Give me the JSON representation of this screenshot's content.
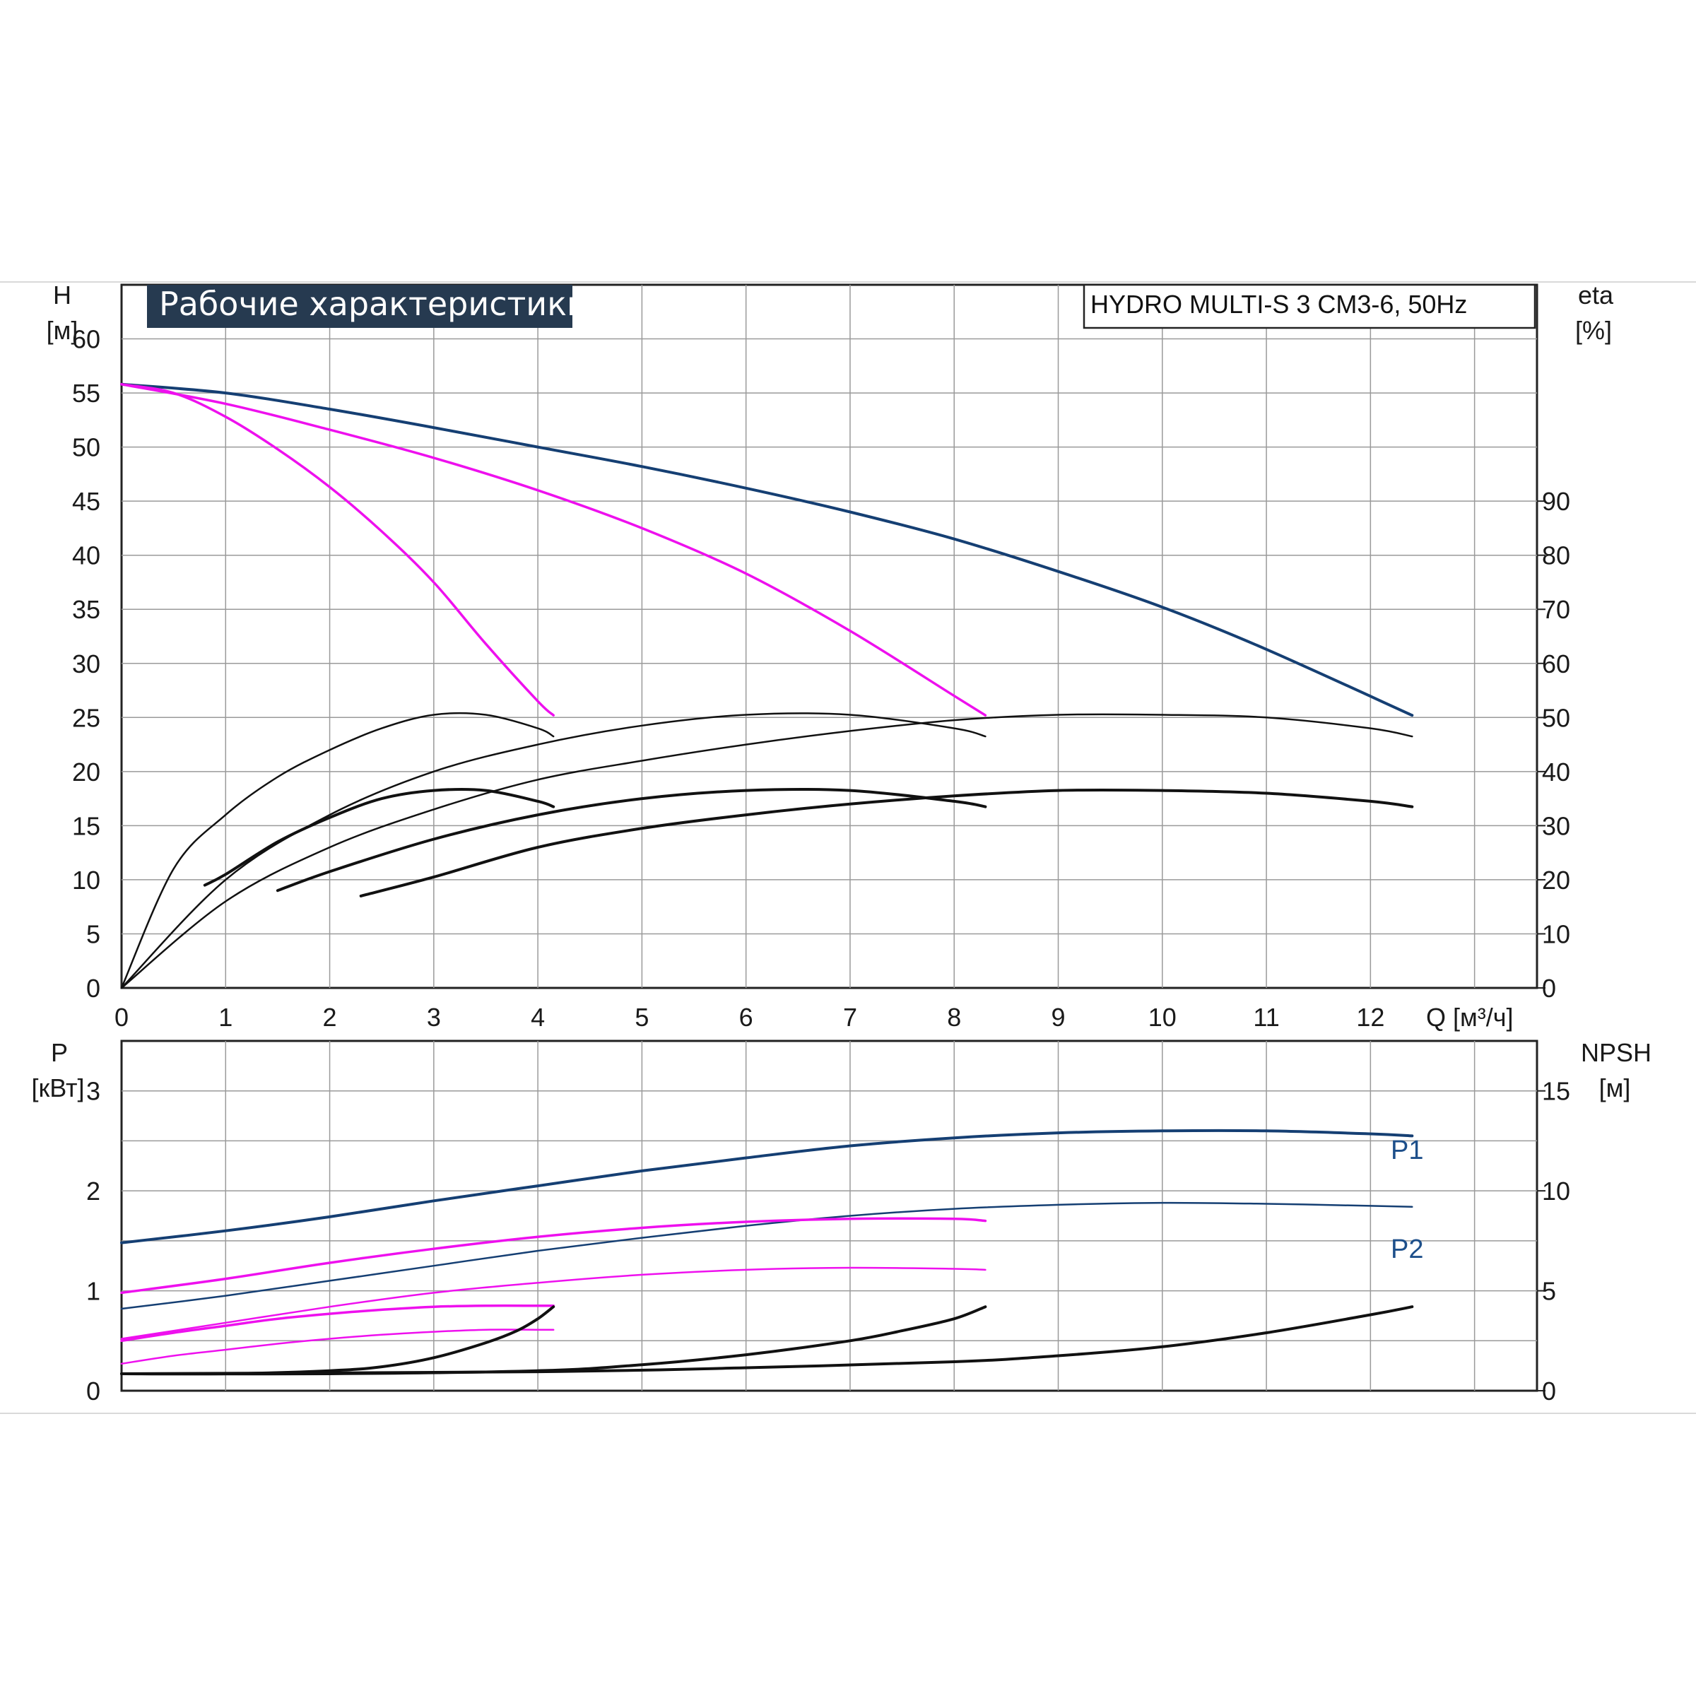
{
  "header": {
    "title": "Рабочие характеристики",
    "model": "HYDRO MULTI-S 3 CM3-6, 50Hz"
  },
  "colors": {
    "blue": "#153f73",
    "magenta": "#ee10ee",
    "black": "#111111",
    "title_bg": "#263a50"
  },
  "chart_data": [
    {
      "type": "line",
      "name": "head-efficiency",
      "xlabel": "Q [м³/ч]",
      "ylabel_left": "H",
      "ylabel_left_unit": "[м]",
      "ylabel_right": "eta",
      "ylabel_right_unit": "[%]",
      "xlim": [
        0,
        13.6
      ],
      "ylim_left": [
        0,
        65
      ],
      "ylim_right": [
        0,
        130
      ],
      "x_ticks": [
        "0",
        "1",
        "2",
        "3",
        "4",
        "5",
        "6",
        "7",
        "8",
        "9",
        "10",
        "11",
        "12"
      ],
      "y_ticks_left": [
        "0",
        "5",
        "10",
        "15",
        "20",
        "25",
        "30",
        "35",
        "40",
        "45",
        "50",
        "55",
        "60"
      ],
      "y_ticks_right": [
        "0",
        "10",
        "20",
        "30",
        "40",
        "50",
        "60",
        "70",
        "80",
        "90"
      ],
      "grid": true,
      "series": [
        {
          "color": "blue",
          "width": 4,
          "axis": "left",
          "x": [
            0,
            1,
            2,
            3,
            4,
            5,
            6,
            7,
            8,
            9,
            10,
            11,
            12.4
          ],
          "y": [
            55.8,
            55,
            53.5,
            51.8,
            50,
            48.2,
            46.2,
            44,
            41.5,
            38.5,
            35.2,
            31.3,
            25.2
          ]
        },
        {
          "color": "magenta",
          "width": 3.5,
          "axis": "left",
          "x": [
            0,
            1,
            2,
            3,
            4,
            5,
            6,
            7,
            8,
            8.3
          ],
          "y": [
            55.8,
            54,
            51.6,
            49,
            46,
            42.5,
            38.3,
            33,
            27,
            25.2
          ]
        },
        {
          "color": "magenta",
          "width": 3.5,
          "axis": "left",
          "x": [
            0,
            0.5,
            1,
            1.5,
            2,
            2.5,
            3,
            3.5,
            4,
            4.15
          ],
          "y": [
            55.8,
            55,
            52.8,
            49.8,
            46.3,
            42.2,
            37.5,
            31.8,
            26.5,
            25.2
          ]
        },
        {
          "color": "black",
          "width": 2.5,
          "axis": "right",
          "x": [
            0,
            0.5,
            1,
            1.5,
            2,
            2.5,
            3,
            3.5,
            4,
            4.15
          ],
          "y": [
            0,
            22,
            32,
            39,
            44,
            48,
            50.5,
            50.5,
            48,
            46.5
          ]
        },
        {
          "color": "black",
          "width": 4,
          "axis": "right",
          "x": [
            0.8,
            1,
            1.5,
            2,
            2.5,
            3,
            3.5,
            4,
            4.15
          ],
          "y": [
            19,
            21,
            27,
            31.5,
            35,
            36.5,
            36.5,
            34.5,
            33.5
          ]
        },
        {
          "color": "black",
          "width": 2.5,
          "axis": "right",
          "x": [
            0,
            1,
            2,
            3,
            4,
            5,
            6,
            7,
            8,
            8.3
          ],
          "y": [
            0,
            20,
            32,
            40,
            45,
            48.5,
            50.5,
            50.5,
            48,
            46.5
          ]
        },
        {
          "color": "black",
          "width": 4,
          "axis": "right",
          "x": [
            1.5,
            2,
            3,
            4,
            5,
            6,
            7,
            8,
            8.3
          ],
          "y": [
            18,
            21.5,
            27.5,
            32,
            35,
            36.5,
            36.5,
            34.5,
            33.5
          ]
        },
        {
          "color": "black",
          "width": 2.5,
          "axis": "right",
          "x": [
            0,
            1,
            2,
            3,
            4,
            5,
            6,
            7,
            8,
            9,
            10,
            11,
            12,
            12.4
          ],
          "y": [
            0,
            16,
            26,
            33,
            38.5,
            42,
            45,
            47.5,
            49.5,
            50.5,
            50.5,
            50,
            48,
            46.5
          ]
        },
        {
          "color": "black",
          "width": 4,
          "axis": "right",
          "x": [
            2.3,
            3,
            4,
            5,
            6,
            7,
            8,
            9,
            10,
            11,
            12,
            12.4
          ],
          "y": [
            17,
            20.5,
            26,
            29.5,
            32,
            34,
            35.5,
            36.5,
            36.5,
            36,
            34.5,
            33.5
          ]
        }
      ]
    },
    {
      "type": "line",
      "name": "power-npsh",
      "ylabel_left": "P",
      "ylabel_left_unit": "[кВт]",
      "ylabel_right": "NPSH",
      "ylabel_right_unit": "[м]",
      "xlim": [
        0,
        13.6
      ],
      "ylim_left": [
        0,
        3.5
      ],
      "ylim_right": [
        0,
        17.5
      ],
      "y_ticks_left": [
        "0",
        "1",
        "2",
        "3"
      ],
      "y_ticks_right": [
        "0",
        "5",
        "10",
        "15"
      ],
      "grid": true,
      "series": [
        {
          "label": "P1",
          "color": "blue",
          "width": 4,
          "axis": "left",
          "x": [
            0,
            1,
            2,
            3,
            4,
            5,
            6,
            7,
            8,
            9,
            10,
            11,
            12,
            12.4
          ],
          "y": [
            1.48,
            1.6,
            1.74,
            1.9,
            2.05,
            2.2,
            2.33,
            2.45,
            2.53,
            2.58,
            2.6,
            2.6,
            2.57,
            2.55
          ]
        },
        {
          "label": "P2",
          "color": "blue",
          "width": 2.5,
          "axis": "left",
          "x": [
            0,
            1,
            2,
            3,
            4,
            5,
            6,
            7,
            8,
            9,
            10,
            11,
            12,
            12.4
          ],
          "y": [
            0.82,
            0.95,
            1.1,
            1.25,
            1.4,
            1.53,
            1.65,
            1.75,
            1.82,
            1.86,
            1.88,
            1.87,
            1.85,
            1.84
          ]
        },
        {
          "color": "magenta",
          "width": 3.5,
          "axis": "left",
          "x": [
            0,
            1,
            2,
            3,
            4,
            5,
            6,
            7,
            8,
            8.3
          ],
          "y": [
            0.98,
            1.12,
            1.28,
            1.42,
            1.54,
            1.63,
            1.69,
            1.72,
            1.72,
            1.7
          ]
        },
        {
          "color": "magenta",
          "width": 2.5,
          "axis": "left",
          "x": [
            0,
            1,
            2,
            3,
            4,
            5,
            6,
            7,
            8,
            8.3
          ],
          "y": [
            0.52,
            0.68,
            0.84,
            0.98,
            1.08,
            1.16,
            1.21,
            1.23,
            1.22,
            1.21
          ]
        },
        {
          "color": "magenta",
          "width": 3.5,
          "axis": "left",
          "x": [
            0,
            0.5,
            1,
            1.5,
            2,
            2.5,
            3,
            3.5,
            4,
            4.15
          ],
          "y": [
            0.5,
            0.58,
            0.65,
            0.72,
            0.77,
            0.81,
            0.84,
            0.85,
            0.85,
            0.85
          ]
        },
        {
          "color": "magenta",
          "width": 2.5,
          "axis": "left",
          "x": [
            0,
            0.5,
            1,
            1.5,
            2,
            2.5,
            3,
            3.5,
            4,
            4.15
          ],
          "y": [
            0.27,
            0.35,
            0.41,
            0.47,
            0.52,
            0.56,
            0.59,
            0.61,
            0.61,
            0.61
          ]
        },
        {
          "color": "black",
          "width": 4,
          "axis": "right",
          "x": [
            0,
            1,
            2,
            2.5,
            3,
            3.5,
            3.8,
            4,
            4.15
          ],
          "y": [
            0.85,
            0.85,
            1,
            1.2,
            1.65,
            2.4,
            3,
            3.6,
            4.2
          ]
        },
        {
          "color": "black",
          "width": 4,
          "axis": "right",
          "x": [
            0,
            2,
            4,
            5,
            6,
            7,
            7.5,
            8,
            8.3
          ],
          "y": [
            0.85,
            0.85,
            1,
            1.3,
            1.8,
            2.5,
            3,
            3.6,
            4.2
          ]
        },
        {
          "color": "black",
          "width": 4,
          "axis": "right",
          "x": [
            0,
            4,
            6,
            8,
            9,
            10,
            11,
            12,
            12.4
          ],
          "y": [
            0.85,
            0.95,
            1.15,
            1.45,
            1.75,
            2.2,
            2.9,
            3.8,
            4.2
          ]
        }
      ]
    }
  ]
}
